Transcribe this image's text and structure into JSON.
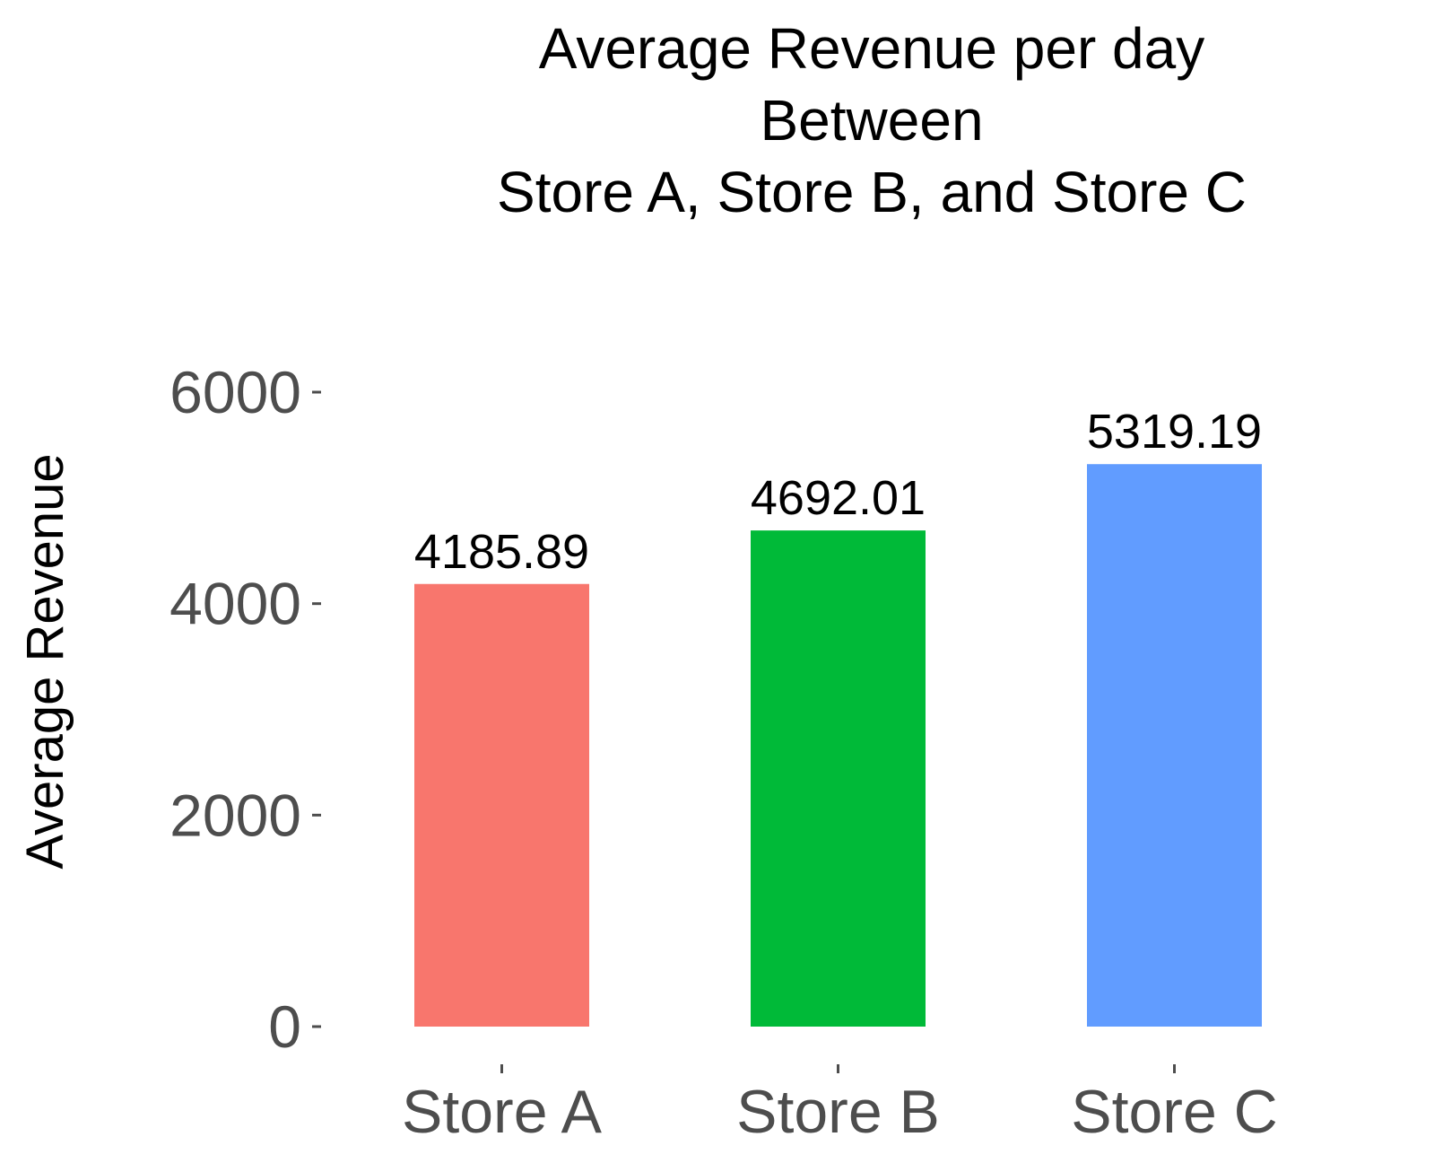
{
  "chart_data": {
    "type": "bar",
    "title_lines": [
      "Average Revenue per day",
      "Between",
      "Store A, Store B, and Store C"
    ],
    "xlabel": "",
    "ylabel": "Average Revenue",
    "categories": [
      "Store A",
      "Store B",
      "Store C"
    ],
    "values": [
      4185.89,
      4692.01,
      5319.19
    ],
    "value_labels": [
      "4185.89",
      "4692.01",
      "5319.19"
    ],
    "colors": [
      "#F8766D",
      "#00BA38",
      "#619CFF"
    ],
    "ylim": [
      0,
      6000
    ],
    "yticks": [
      0,
      2000,
      4000,
      6000
    ],
    "ytick_labels": [
      "0",
      "2000",
      "4000",
      "6000"
    ],
    "grid": false,
    "legend": "none"
  }
}
